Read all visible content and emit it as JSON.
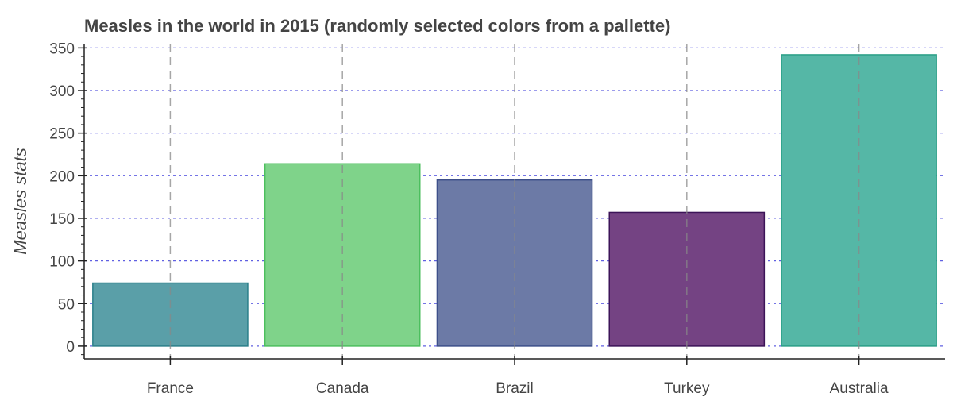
{
  "chart_data": {
    "type": "bar",
    "title": "Measles in the world in 2015 (randomly selected colors from a pallette)",
    "xlabel": "",
    "ylabel": "Measles stats",
    "categories": [
      "France",
      "Canada",
      "Brazil",
      "Turkey",
      "Australia"
    ],
    "values": [
      74,
      214,
      195,
      157,
      342
    ],
    "colors": [
      "#5a9fa8",
      "#7fd38a",
      "#6c7aa6",
      "#744383",
      "#55b7a6"
    ],
    "stroke_colors": [
      "#2a7f8a",
      "#4cbf5e",
      "#3d4f8a",
      "#3c1458",
      "#2a9f87"
    ],
    "ylim": [
      -15,
      355
    ],
    "yticks": [
      0,
      50,
      100,
      150,
      200,
      250,
      300,
      350
    ],
    "grid": {
      "x": true,
      "y": true,
      "x_color": "#888888",
      "y_color": "#4444dd"
    }
  }
}
